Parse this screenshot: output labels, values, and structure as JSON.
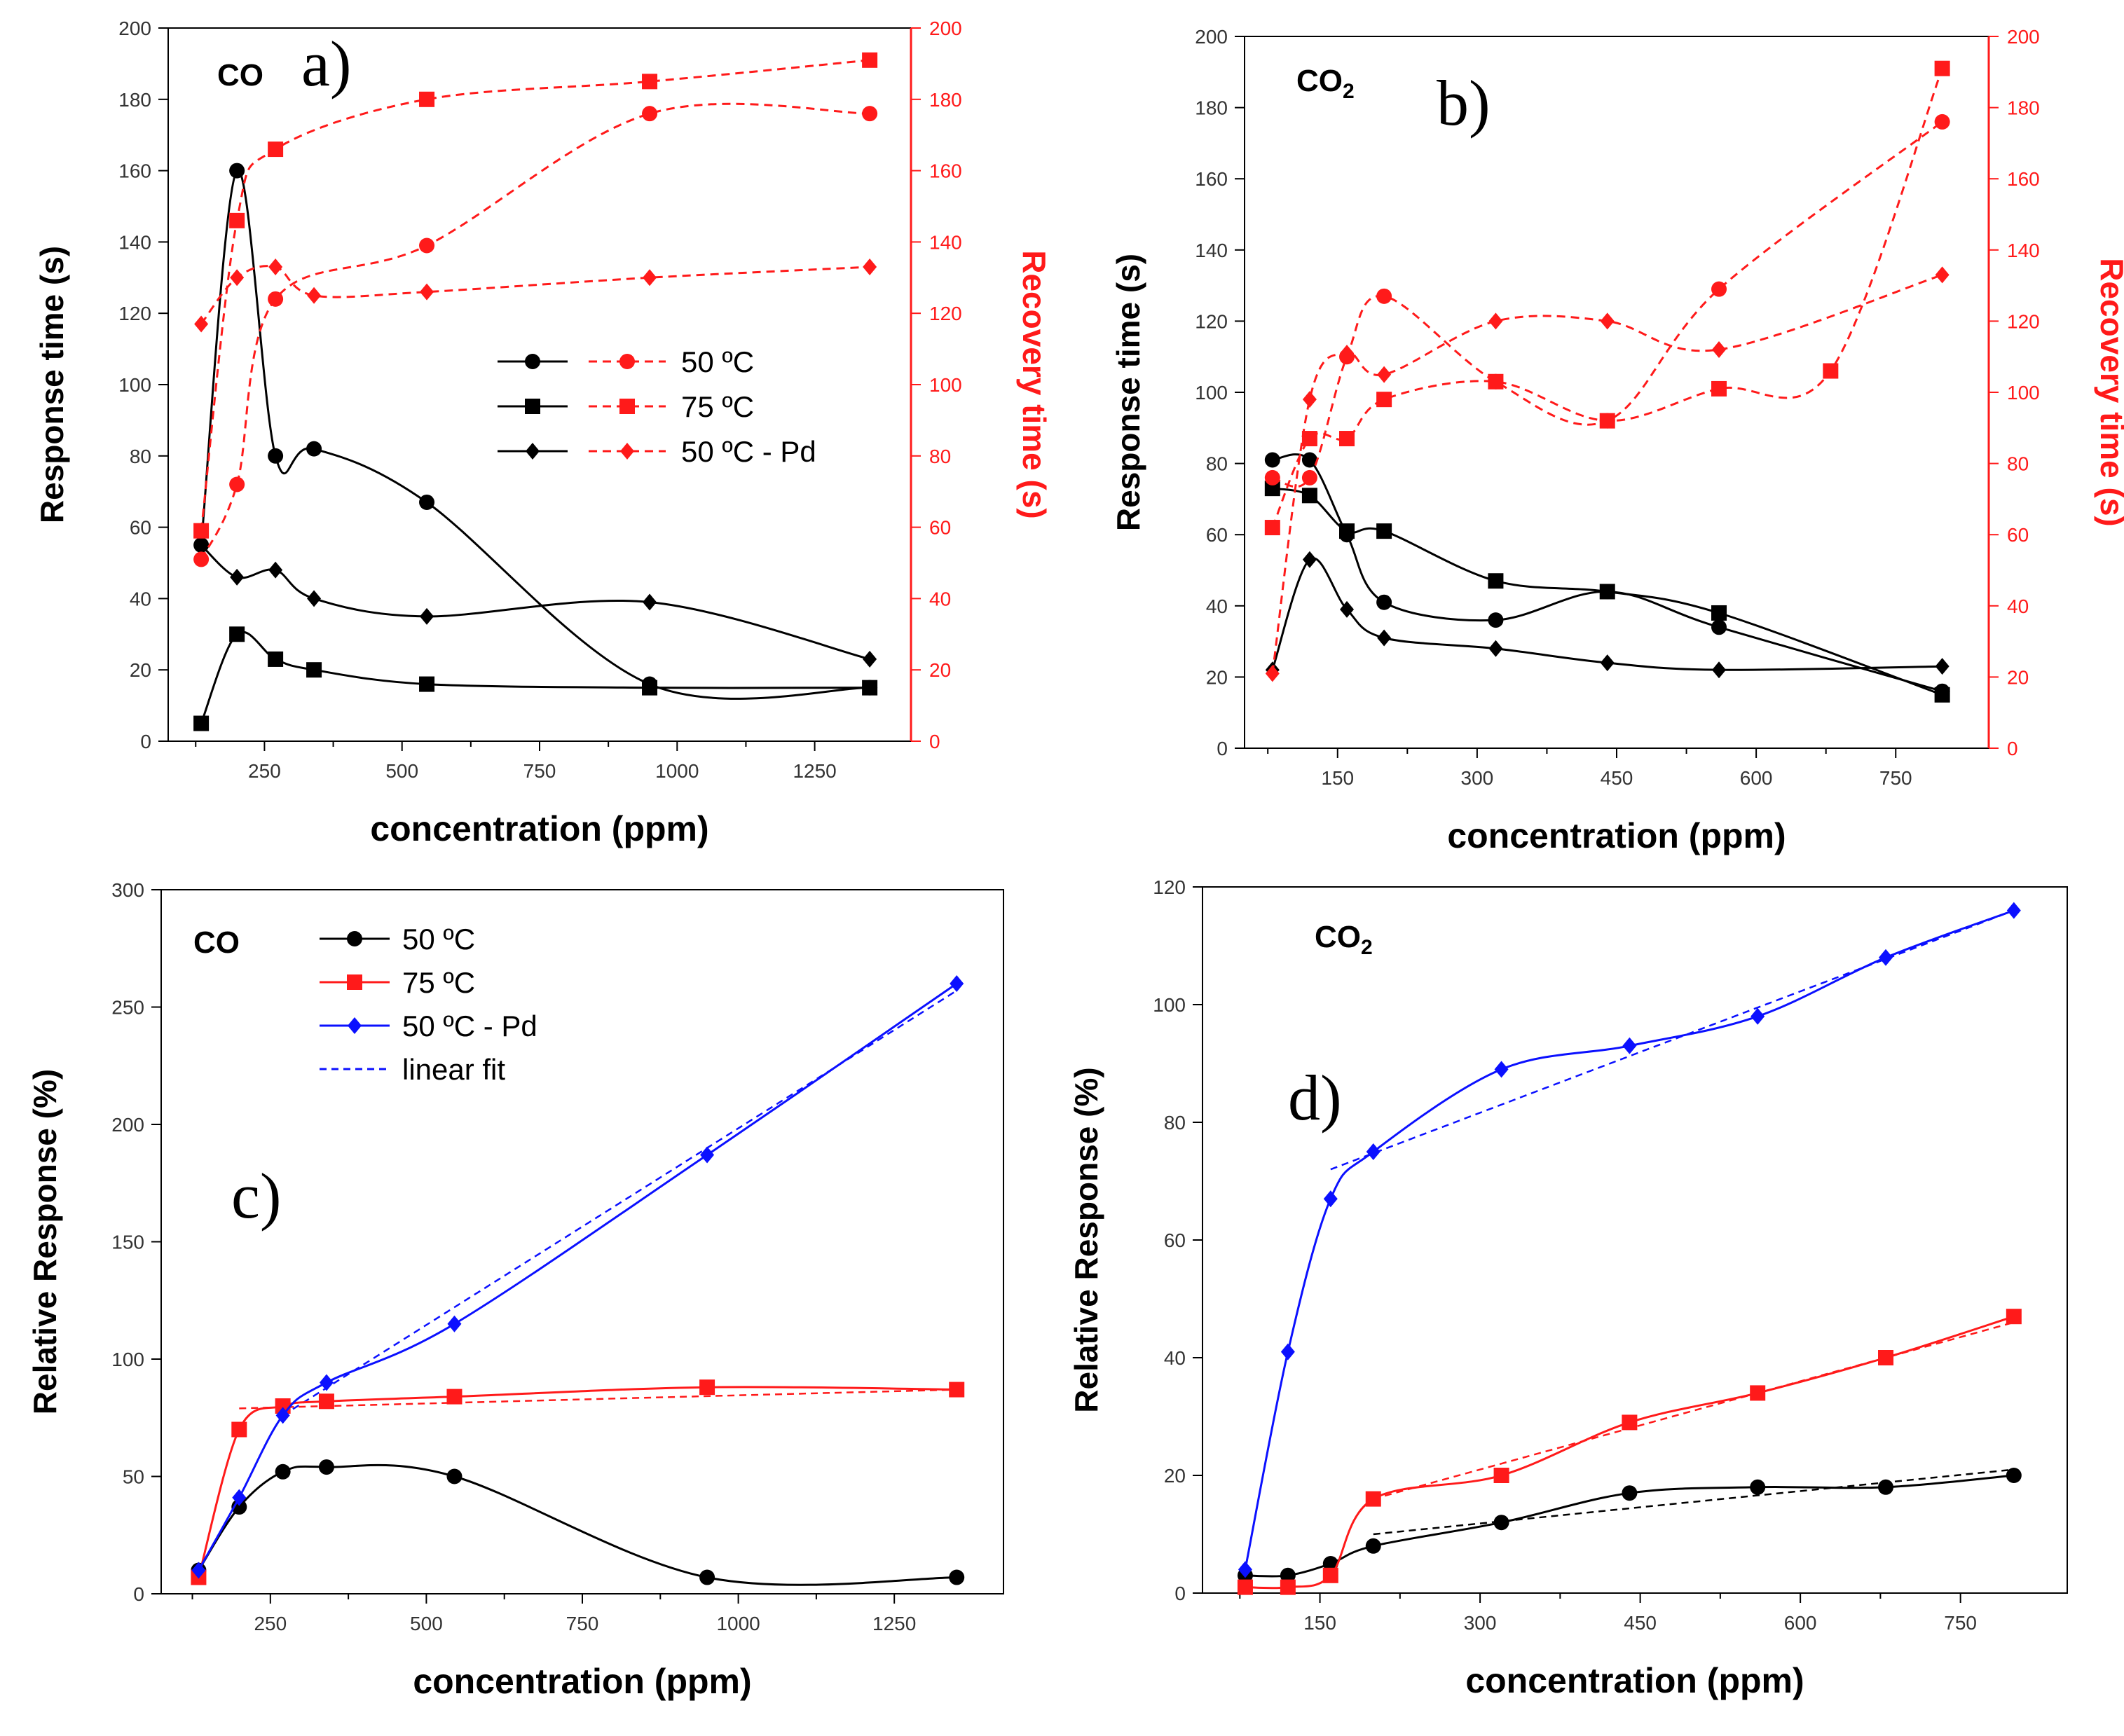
{
  "colors": {
    "black": "#000000",
    "red": "#ff1a1a",
    "blue": "#0b10ff"
  },
  "chart_data": [
    {
      "id": "a",
      "type": "line",
      "panel_label": "a)",
      "gas_label": "CO",
      "xlabel": "concentration (ppm)",
      "ylabel": "Response time (s)",
      "ylabel_right": "Recovery time (s)",
      "xlim": [
        75,
        1425
      ],
      "ylim": [
        0,
        200
      ],
      "ylim_right": [
        0,
        200
      ],
      "xticks": [
        250,
        500,
        750,
        1000,
        1250
      ],
      "yticks": [
        0,
        20,
        40,
        60,
        80,
        100,
        120,
        140,
        160,
        180,
        200
      ],
      "yticks_right": [
        0,
        20,
        40,
        60,
        80,
        100,
        120,
        140,
        160,
        180,
        200
      ],
      "legend": [
        "50 ºC",
        "75 ºC",
        "50 ºC - Pd"
      ],
      "series": [
        {
          "name": "50 ºC",
          "axis": "left",
          "marker": "circle",
          "color": "black",
          "dashed": false,
          "x": [
            135,
            200,
            270,
            340,
            545,
            950,
            1350
          ],
          "y": [
            55,
            160,
            80,
            82,
            67,
            16,
            15
          ]
        },
        {
          "name": "75 ºC",
          "axis": "left",
          "marker": "square",
          "color": "black",
          "dashed": false,
          "x": [
            135,
            200,
            270,
            340,
            545,
            950,
            1350
          ],
          "y": [
            5,
            30,
            23,
            20,
            16,
            15,
            15
          ]
        },
        {
          "name": "50 ºC - Pd",
          "axis": "left",
          "marker": "diamond",
          "color": "black",
          "dashed": false,
          "x": [
            135,
            200,
            270,
            340,
            545,
            950,
            1350
          ],
          "y": [
            55,
            46,
            48,
            40,
            35,
            39,
            23
          ]
        },
        {
          "name": "50 ºC",
          "axis": "right",
          "marker": "circle",
          "color": "red",
          "dashed": true,
          "x": [
            135,
            200,
            270,
            545,
            950,
            1350
          ],
          "y": [
            51,
            72,
            124,
            139,
            176,
            176
          ]
        },
        {
          "name": "75 ºC",
          "axis": "right",
          "marker": "square",
          "color": "red",
          "dashed": true,
          "x": [
            135,
            200,
            270,
            545,
            950,
            1350
          ],
          "y": [
            59,
            146,
            166,
            180,
            185,
            191
          ]
        },
        {
          "name": "50 ºC - Pd",
          "axis": "right",
          "marker": "diamond",
          "color": "red",
          "dashed": true,
          "x": [
            135,
            200,
            270,
            340,
            545,
            950,
            1350
          ],
          "y": [
            117,
            130,
            133,
            125,
            126,
            130,
            133
          ]
        }
      ]
    },
    {
      "id": "b",
      "type": "line",
      "panel_label": "b)",
      "gas_label": "CO",
      "gas_sub": "2",
      "xlabel": "concentration (ppm)",
      "ylabel": "Response time (s)",
      "ylabel_right": "Recovery time (s)",
      "xlim": [
        50,
        850
      ],
      "ylim": [
        0,
        200
      ],
      "ylim_right": [
        0,
        200
      ],
      "xticks": [
        150,
        300,
        450,
        600,
        750
      ],
      "yticks": [
        0,
        20,
        40,
        60,
        80,
        100,
        120,
        140,
        160,
        180,
        200
      ],
      "yticks_right": [
        0,
        20,
        40,
        60,
        80,
        100,
        120,
        140,
        160,
        180,
        200
      ],
      "series": [
        {
          "name": "50 ºC",
          "axis": "left",
          "marker": "circle",
          "color": "black",
          "dashed": false,
          "x": [
            80,
            120,
            160,
            200,
            320,
            440,
            560,
            800
          ],
          "y": [
            81,
            81,
            60,
            41,
            36,
            44,
            34,
            16
          ]
        },
        {
          "name": "75 ºC",
          "axis": "left",
          "marker": "square",
          "color": "black",
          "dashed": false,
          "x": [
            80,
            120,
            160,
            200,
            320,
            440,
            560,
            800
          ],
          "y": [
            73,
            71,
            61,
            61,
            47,
            44,
            38,
            15
          ]
        },
        {
          "name": "50 ºC - Pd",
          "axis": "left",
          "marker": "diamond",
          "color": "black",
          "dashed": false,
          "x": [
            80,
            120,
            160,
            200,
            320,
            440,
            560,
            800
          ],
          "y": [
            22,
            53,
            39,
            31,
            28,
            24,
            22,
            23
          ]
        },
        {
          "name": "50 ºC",
          "axis": "right",
          "marker": "circle",
          "color": "red",
          "dashed": true,
          "x": [
            80,
            120,
            160,
            200,
            320,
            440,
            560,
            800
          ],
          "y": [
            76,
            76,
            110,
            127,
            103,
            92,
            129,
            176
          ]
        },
        {
          "name": "75 ºC",
          "axis": "right",
          "marker": "square",
          "color": "red",
          "dashed": true,
          "x": [
            80,
            120,
            160,
            200,
            320,
            440,
            560,
            680,
            800
          ],
          "y": [
            62,
            87,
            87,
            98,
            103,
            92,
            101,
            106,
            191
          ]
        },
        {
          "name": "50 ºC - Pd",
          "axis": "right",
          "marker": "diamond",
          "color": "red",
          "dashed": true,
          "x": [
            80,
            120,
            160,
            200,
            320,
            440,
            560,
            800
          ],
          "y": [
            21,
            98,
            111,
            105,
            120,
            120,
            112,
            133
          ]
        }
      ]
    },
    {
      "id": "c",
      "type": "line",
      "panel_label": "c)",
      "gas_label": "CO",
      "xlabel": "concentration (ppm)",
      "ylabel": "Relative Response (%)",
      "xlim": [
        75,
        1425
      ],
      "ylim": [
        0,
        300
      ],
      "xticks": [
        250,
        500,
        750,
        1000,
        1250
      ],
      "yticks": [
        0,
        50,
        100,
        150,
        200,
        250,
        300
      ],
      "legend": [
        "50 ºC",
        "75 ºC",
        "50 ºC - Pd",
        "linear fit"
      ],
      "series": [
        {
          "name": "50 ºC",
          "marker": "circle",
          "color": "black",
          "x": [
            135,
            200,
            270,
            340,
            545,
            950,
            1350
          ],
          "y": [
            10,
            37,
            52,
            54,
            50,
            7,
            7
          ]
        },
        {
          "name": "75 ºC",
          "marker": "square",
          "color": "red",
          "x": [
            135,
            200,
            270,
            340,
            545,
            950,
            1350
          ],
          "y": [
            7,
            70,
            80,
            82,
            84,
            88,
            87
          ]
        },
        {
          "name": "50 ºC - Pd",
          "marker": "diamond",
          "color": "blue",
          "x": [
            135,
            200,
            270,
            340,
            545,
            950,
            1350
          ],
          "y": [
            10,
            41,
            76,
            90,
            115,
            187,
            260
          ]
        }
      ],
      "fits": [
        {
          "name": "linear fit",
          "color": "blue",
          "x": [
            270,
            1350
          ],
          "y": [
            76,
            257
          ]
        },
        {
          "name": "linear fit",
          "color": "red",
          "x": [
            200,
            1350
          ],
          "y": [
            79,
            87
          ]
        }
      ]
    },
    {
      "id": "d",
      "type": "line",
      "panel_label": "d)",
      "gas_label": "CO",
      "gas_sub": "2",
      "xlabel": "concentration (ppm)",
      "ylabel": "Relative Response (%)",
      "xlim": [
        40,
        850
      ],
      "ylim": [
        0,
        120
      ],
      "xticks": [
        150,
        300,
        450,
        600,
        750
      ],
      "yticks": [
        0,
        20,
        40,
        60,
        80,
        100,
        120
      ],
      "series": [
        {
          "name": "50 ºC",
          "marker": "circle",
          "color": "black",
          "x": [
            80,
            120,
            160,
            200,
            320,
            440,
            560,
            680,
            800
          ],
          "y": [
            3,
            3,
            5,
            8,
            12,
            17,
            18,
            18,
            20
          ]
        },
        {
          "name": "75 ºC",
          "marker": "square",
          "color": "red",
          "x": [
            80,
            120,
            160,
            200,
            320,
            440,
            560,
            680,
            800
          ],
          "y": [
            1,
            1,
            3,
            16,
            20,
            29,
            34,
            40,
            47
          ]
        },
        {
          "name": "50 ºC - Pd",
          "marker": "diamond",
          "color": "blue",
          "x": [
            80,
            120,
            160,
            200,
            320,
            440,
            560,
            680,
            800
          ],
          "y": [
            4,
            41,
            67,
            75,
            89,
            93,
            98,
            108,
            116
          ]
        }
      ],
      "fits": [
        {
          "name": "linear fit",
          "color": "blue",
          "x": [
            160,
            800
          ],
          "y": [
            72,
            116
          ]
        },
        {
          "name": "linear fit",
          "color": "red",
          "x": [
            200,
            800
          ],
          "y": [
            16,
            46
          ]
        },
        {
          "name": "linear fit",
          "color": "black",
          "x": [
            200,
            800
          ],
          "y": [
            10,
            21
          ]
        }
      ]
    }
  ]
}
